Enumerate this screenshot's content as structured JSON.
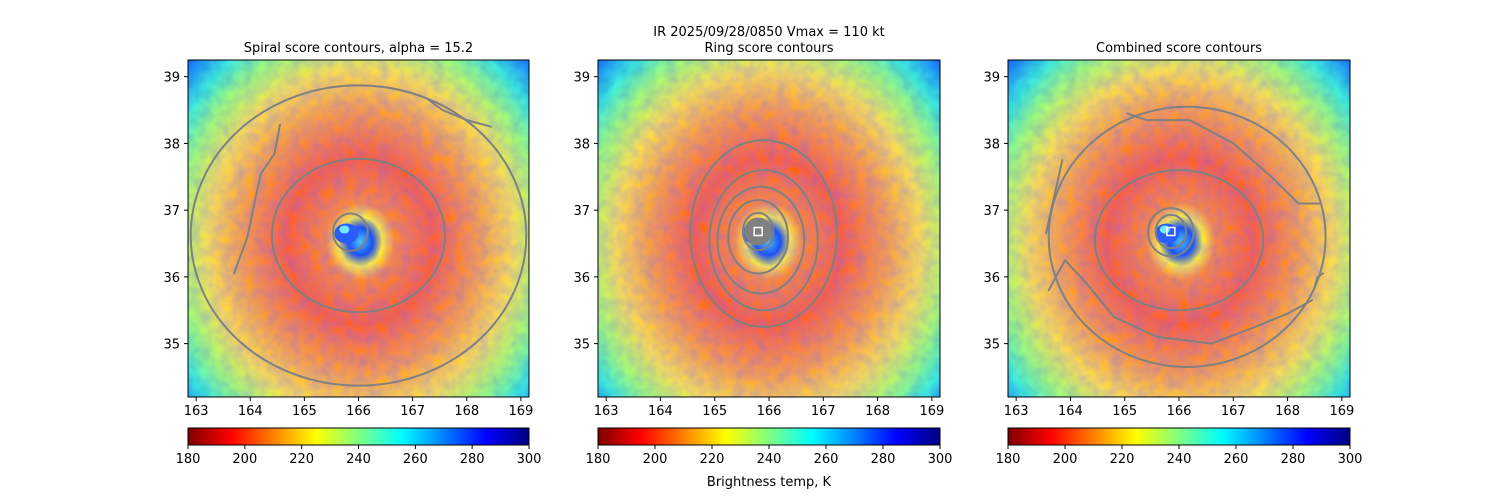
{
  "figure": {
    "suptitle": "IR  2025/09/28/0850    Vmax = 110 kt",
    "colorbar_label": "Brightness temp, K"
  },
  "colormap": {
    "name": "jet_r",
    "stops": [
      "#7f0000",
      "#ff0000",
      "#ff8000",
      "#ffff00",
      "#80ff80",
      "#00ffff",
      "#0080ff",
      "#0000ff",
      "#00007f"
    ]
  },
  "chart_data": [
    {
      "type": "heatmap",
      "title": "Spiral score contours, alpha = 15.2",
      "alpha": 15.2,
      "xlim": [
        162.85,
        169.15
      ],
      "ylim": [
        34.2,
        39.25
      ],
      "xticks": [
        163,
        164,
        165,
        166,
        167,
        168,
        169
      ],
      "yticks": [
        35,
        36,
        37,
        38,
        39
      ],
      "center": [
        165.85,
        36.68
      ],
      "colorbar": {
        "min": 180,
        "max": 300,
        "ticks": [
          180,
          200,
          220,
          240,
          260,
          280,
          300
        ]
      },
      "contour_color": "#808080",
      "contours": [
        {
          "kind": "ring",
          "cx": 165.85,
          "cy": 36.67,
          "rx": 0.32,
          "ry": 0.28
        },
        {
          "kind": "ring",
          "cx": 166.0,
          "cy": 36.62,
          "rx": 1.6,
          "ry": 1.15
        },
        {
          "kind": "ring",
          "cx": 166.0,
          "cy": 36.62,
          "rx": 3.1,
          "ry": 2.25
        },
        {
          "kind": "line",
          "points": [
            [
              163.7,
              36.05
            ],
            [
              163.95,
              36.6
            ],
            [
              164.1,
              37.2
            ],
            [
              164.2,
              37.55
            ],
            [
              164.45,
              37.85
            ],
            [
              164.55,
              38.28
            ]
          ]
        },
        {
          "kind": "line",
          "points": [
            [
              167.3,
              38.65
            ],
            [
              167.55,
              38.5
            ],
            [
              168.0,
              38.35
            ],
            [
              168.45,
              38.25
            ]
          ]
        }
      ],
      "markers": []
    },
    {
      "type": "heatmap",
      "title": "Ring score contours",
      "xlim": [
        162.85,
        169.15
      ],
      "ylim": [
        34.2,
        39.25
      ],
      "xticks": [
        163,
        164,
        165,
        166,
        167,
        168,
        169
      ],
      "yticks": [
        35,
        36,
        37,
        38,
        39
      ],
      "center": [
        165.8,
        36.68
      ],
      "colorbar": {
        "min": 180,
        "max": 300,
        "ticks": [
          180,
          200,
          220,
          240,
          260,
          280,
          300
        ]
      },
      "contour_color": "#808080",
      "contours": [
        {
          "kind": "ring",
          "cx": 165.8,
          "cy": 36.68,
          "rx": 0.28,
          "ry": 0.28
        },
        {
          "kind": "ring",
          "cx": 165.8,
          "cy": 36.6,
          "rx": 0.55,
          "ry": 0.55
        },
        {
          "kind": "ring",
          "cx": 165.85,
          "cy": 36.55,
          "rx": 0.8,
          "ry": 0.8
        },
        {
          "kind": "ring",
          "cx": 165.9,
          "cy": 36.55,
          "rx": 1.0,
          "ry": 1.05
        },
        {
          "kind": "ring",
          "cx": 165.9,
          "cy": 36.65,
          "rx": 1.35,
          "ry": 1.4
        }
      ],
      "markers": [
        {
          "x": 165.8,
          "y": 36.68
        }
      ]
    },
    {
      "type": "heatmap",
      "title": "Combined score contours",
      "xlim": [
        162.85,
        169.15
      ],
      "ylim": [
        34.2,
        39.25
      ],
      "xticks": [
        163,
        164,
        165,
        166,
        167,
        168,
        169
      ],
      "yticks": [
        35,
        36,
        37,
        38,
        39
      ],
      "center": [
        165.85,
        36.68
      ],
      "colorbar": {
        "min": 180,
        "max": 300,
        "ticks": [
          180,
          200,
          220,
          240,
          260,
          280,
          300
        ]
      },
      "contour_color": "#808080",
      "contours": [
        {
          "kind": "ring",
          "cx": 165.85,
          "cy": 36.68,
          "rx": 0.28,
          "ry": 0.25
        },
        {
          "kind": "ring",
          "cx": 165.85,
          "cy": 36.67,
          "rx": 0.42,
          "ry": 0.36
        },
        {
          "kind": "ring",
          "cx": 166.0,
          "cy": 36.55,
          "rx": 1.55,
          "ry": 1.05
        },
        {
          "kind": "ring",
          "cx": 166.15,
          "cy": 36.6,
          "rx": 2.55,
          "ry": 1.95
        },
        {
          "kind": "line",
          "points": [
            [
              163.6,
              35.8
            ],
            [
              163.9,
              36.25
            ],
            [
              164.3,
              35.9
            ],
            [
              164.8,
              35.4
            ],
            [
              165.6,
              35.1
            ],
            [
              166.6,
              35.0
            ],
            [
              167.4,
              35.25
            ],
            [
              168.0,
              35.45
            ],
            [
              168.45,
              35.65
            ]
          ]
        },
        {
          "kind": "line",
          "points": [
            [
              165.05,
              38.45
            ],
            [
              165.4,
              38.35
            ],
            [
              166.2,
              38.35
            ],
            [
              167.0,
              38.0
            ],
            [
              167.7,
              37.5
            ],
            [
              168.2,
              37.1
            ],
            [
              168.6,
              37.1
            ]
          ]
        },
        {
          "kind": "line",
          "points": [
            [
              163.55,
              36.65
            ],
            [
              163.7,
              37.2
            ],
            [
              163.85,
              37.75
            ]
          ]
        },
        {
          "kind": "line",
          "points": [
            [
              168.5,
              35.85
            ],
            [
              168.55,
              36.0
            ],
            [
              168.65,
              36.05
            ]
          ]
        }
      ],
      "markers": [
        {
          "x": 165.85,
          "y": 36.68
        }
      ]
    }
  ]
}
